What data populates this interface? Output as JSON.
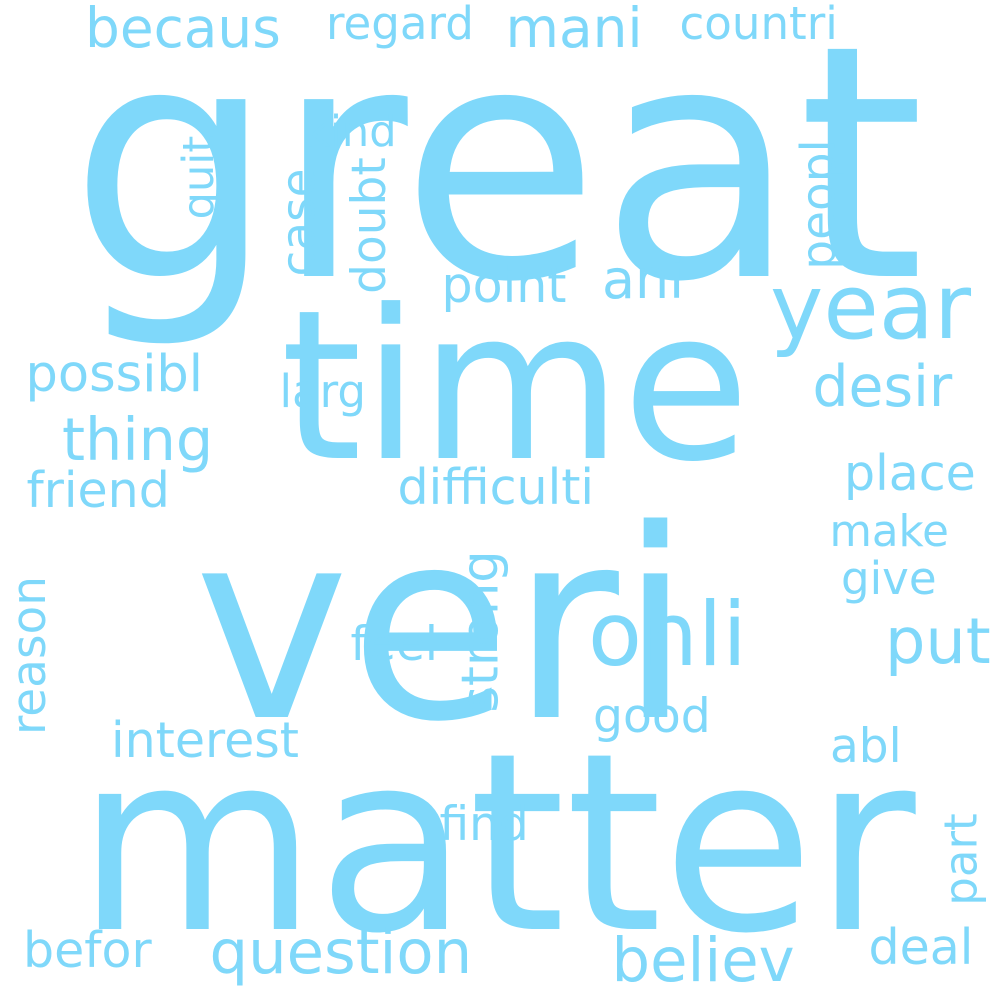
{
  "word_cloud": {
    "color": "#7fd8fa",
    "words": [
      {
        "text": "great",
        "weight": 1.0
      },
      {
        "text": "veri",
        "weight": 1.0
      },
      {
        "text": "matter",
        "weight": 0.78
      },
      {
        "text": "time",
        "weight": 0.75
      },
      {
        "text": "onli",
        "weight": 0.35
      },
      {
        "text": "year",
        "weight": 0.33
      },
      {
        "text": "question",
        "weight": 0.25
      },
      {
        "text": "believ",
        "weight": 0.22
      },
      {
        "text": "becaus",
        "weight": 0.2
      },
      {
        "text": "mani",
        "weight": 0.2
      },
      {
        "text": "put",
        "weight": 0.2
      },
      {
        "text": "thing",
        "weight": 0.2
      },
      {
        "text": "ani",
        "weight": 0.18
      },
      {
        "text": "desir",
        "weight": 0.17
      },
      {
        "text": "regard",
        "weight": 0.16
      },
      {
        "text": "countri",
        "weight": 0.16
      },
      {
        "text": "difficulti",
        "weight": 0.16
      },
      {
        "text": "possibl",
        "weight": 0.15
      },
      {
        "text": "friend",
        "weight": 0.15
      },
      {
        "text": "good",
        "weight": 0.15
      },
      {
        "text": "interest",
        "weight": 0.15
      },
      {
        "text": "strong",
        "weight": 0.15
      },
      {
        "text": "point",
        "weight": 0.14
      },
      {
        "text": "place",
        "weight": 0.14
      },
      {
        "text": "befor",
        "weight": 0.14
      },
      {
        "text": "deal",
        "weight": 0.14
      },
      {
        "text": "find",
        "weight": 0.14
      },
      {
        "text": "abl",
        "weight": 0.14
      },
      {
        "text": "feel",
        "weight": 0.13
      },
      {
        "text": "reason",
        "weight": 0.13
      },
      {
        "text": "make",
        "weight": 0.13
      },
      {
        "text": "give",
        "weight": 0.13
      },
      {
        "text": "peopl",
        "weight": 0.12
      },
      {
        "text": "kind",
        "weight": 0.12
      },
      {
        "text": "larg",
        "weight": 0.12
      },
      {
        "text": "case",
        "weight": 0.12
      },
      {
        "text": "doubt",
        "weight": 0.12
      },
      {
        "text": "quit",
        "weight": 0.12
      },
      {
        "text": "part",
        "weight": 0.12
      }
    ]
  }
}
